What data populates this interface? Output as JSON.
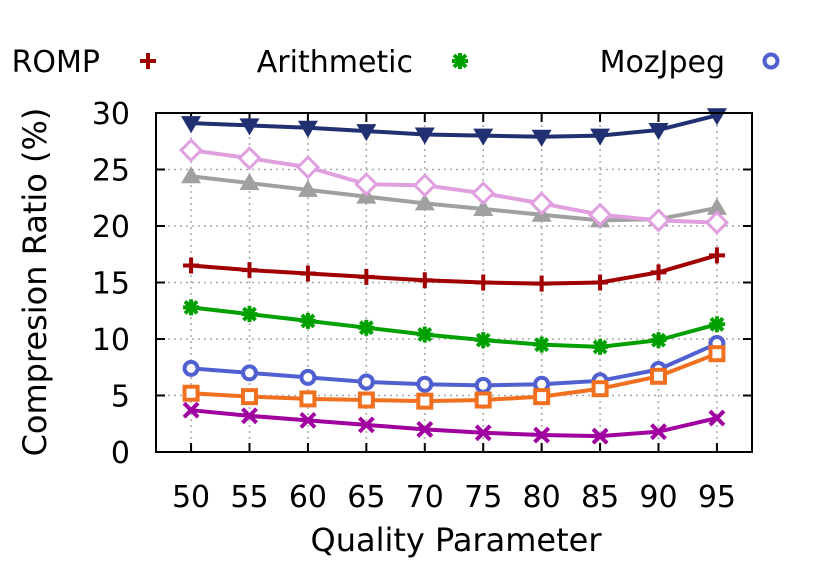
{
  "chart_data": {
    "type": "line",
    "xlabel": "Quality Parameter",
    "ylabel": "Compresion Ratio (%)",
    "xlim": [
      47,
      98
    ],
    "ylim": [
      0,
      30
    ],
    "grid": true,
    "legend_position": "top",
    "x": [
      50,
      55,
      60,
      65,
      70,
      75,
      80,
      85,
      90,
      95
    ],
    "x_ticks": [
      "50",
      "55",
      "60",
      "65",
      "70",
      "75",
      "80",
      "85",
      "90",
      "95"
    ],
    "y_ticks": [
      "0",
      "5",
      "10",
      "15",
      "20",
      "25",
      "30"
    ],
    "series": [
      {
        "name": "ROMP",
        "color": "#a00000",
        "marker": "plus",
        "values": [
          16.5,
          16.1,
          15.8,
          15.5,
          15.2,
          15.0,
          14.9,
          15.0,
          15.9,
          17.4
        ]
      },
      {
        "name": "Arithmetic",
        "color": "#00a000",
        "marker": "star",
        "values": [
          12.8,
          12.2,
          11.6,
          11.0,
          10.4,
          9.9,
          9.5,
          9.3,
          9.9,
          11.3
        ]
      },
      {
        "name": "MozJpeg",
        "color": "#5060d0",
        "marker": "circle",
        "values": [
          7.4,
          7.0,
          6.6,
          6.2,
          6.0,
          5.9,
          6.0,
          6.3,
          7.3,
          9.6
        ]
      },
      {
        "color": "#f07020",
        "marker": "square",
        "values": [
          5.2,
          4.9,
          4.7,
          4.6,
          4.5,
          4.6,
          4.9,
          5.6,
          6.7,
          8.7
        ]
      },
      {
        "color": "#a000a0",
        "marker": "x",
        "values": [
          3.7,
          3.2,
          2.8,
          2.4,
          2.0,
          1.7,
          1.5,
          1.4,
          1.8,
          3.0
        ]
      },
      {
        "color": "#a0a0a0",
        "marker": "triangle-up",
        "values": [
          24.4,
          23.8,
          23.2,
          22.6,
          22.0,
          21.5,
          21.0,
          20.5,
          20.6,
          21.6
        ]
      },
      {
        "color": "#e0a0e0",
        "marker": "diamond",
        "values": [
          26.7,
          26.0,
          25.2,
          23.7,
          23.6,
          22.9,
          22.0,
          21.0,
          20.5,
          20.3
        ]
      },
      {
        "color": "#203070",
        "marker": "triangle-down",
        "values": [
          29.1,
          28.9,
          28.7,
          28.4,
          28.1,
          28.0,
          27.9,
          28.0,
          28.5,
          29.8
        ]
      }
    ]
  }
}
